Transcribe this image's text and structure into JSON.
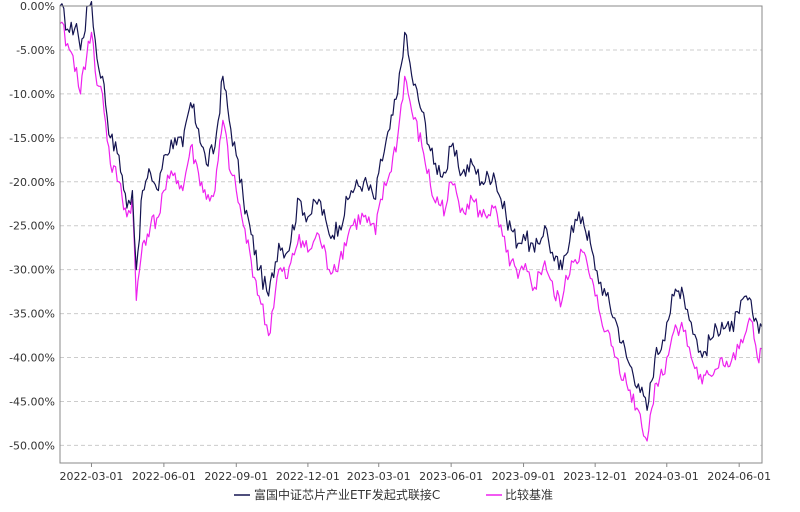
{
  "chart_data": {
    "type": "line",
    "title": "",
    "xlabel": "",
    "ylabel": "",
    "grid": true,
    "legend_position": "bottom-center",
    "x_range": [
      "2022-01-20",
      "2024-06-30"
    ],
    "ylim": [
      -0.52,
      0.0
    ],
    "y_ticks": [
      0,
      -0.05,
      -0.1,
      -0.15,
      -0.2,
      -0.25,
      -0.3,
      -0.35,
      -0.4,
      -0.45,
      -0.5
    ],
    "y_tick_labels": [
      "0.00%",
      "-5.00%",
      "-10.00%",
      "-15.00%",
      "-20.00%",
      "-25.00%",
      "-30.00%",
      "-35.00%",
      "-40.00%",
      "-45.00%",
      "-50.00%"
    ],
    "x_ticks": [
      "2022-03-01",
      "2022-06-01",
      "2022-09-01",
      "2022-12-01",
      "2023-03-01",
      "2023-06-01",
      "2023-09-01",
      "2023-12-01",
      "2024-03-01",
      "2024-06-01"
    ],
    "x_tick_labels": [
      "2022-03-01",
      "2022-06-01",
      "2022-09-01",
      "2022-12-01",
      "2023-03-01",
      "2023-06-01",
      "2023-09-01",
      "2023-12-01",
      "2024-03-01",
      "2024-06-01"
    ],
    "colors": {
      "fund": "#141450",
      "benchmark": "#ee22ee",
      "zero_line": "#3333aa",
      "grid": "#cccccc"
    },
    "series": [
      {
        "name": "富国中证芯片产业ETF发起式联接C",
        "points": [
          [
            "2022-01-20",
            0.0
          ],
          [
            "2022-02-01",
            -0.03
          ],
          [
            "2022-02-10",
            -0.02
          ],
          [
            "2022-02-15",
            -0.05
          ],
          [
            "2022-02-25",
            0.0
          ],
          [
            "2022-03-01",
            0.005
          ],
          [
            "2022-03-08",
            -0.06
          ],
          [
            "2022-03-15",
            -0.08
          ],
          [
            "2022-03-25",
            -0.15
          ],
          [
            "2022-04-05",
            -0.17
          ],
          [
            "2022-04-15",
            -0.23
          ],
          [
            "2022-04-22",
            -0.21
          ],
          [
            "2022-04-27",
            -0.3
          ],
          [
            "2022-05-05",
            -0.21
          ],
          [
            "2022-05-15",
            -0.19
          ],
          [
            "2022-05-25",
            -0.21
          ],
          [
            "2022-06-01",
            -0.17
          ],
          [
            "2022-06-15",
            -0.15
          ],
          [
            "2022-06-25",
            -0.16
          ],
          [
            "2022-07-05",
            -0.11
          ],
          [
            "2022-07-15",
            -0.14
          ],
          [
            "2022-07-25",
            -0.18
          ],
          [
            "2022-08-05",
            -0.16
          ],
          [
            "2022-08-15",
            -0.08
          ],
          [
            "2022-08-25",
            -0.14
          ],
          [
            "2022-09-01",
            -0.17
          ],
          [
            "2022-09-10",
            -0.22
          ],
          [
            "2022-09-20",
            -0.26
          ],
          [
            "2022-09-30",
            -0.3
          ],
          [
            "2022-10-12",
            -0.33
          ],
          [
            "2022-10-25",
            -0.27
          ],
          [
            "2022-11-05",
            -0.28
          ],
          [
            "2022-11-20",
            -0.22
          ],
          [
            "2022-12-01",
            -0.24
          ],
          [
            "2022-12-15",
            -0.22
          ],
          [
            "2022-12-28",
            -0.26
          ],
          [
            "2023-01-10",
            -0.25
          ],
          [
            "2023-01-25",
            -0.21
          ],
          [
            "2023-02-10",
            -0.2
          ],
          [
            "2023-02-25",
            -0.22
          ],
          [
            "2023-03-01",
            -0.19
          ],
          [
            "2023-03-15",
            -0.14
          ],
          [
            "2023-03-25",
            -0.1
          ],
          [
            "2023-04-03",
            -0.03
          ],
          [
            "2023-04-12",
            -0.08
          ],
          [
            "2023-04-25",
            -0.12
          ],
          [
            "2023-05-10",
            -0.18
          ],
          [
            "2023-05-25",
            -0.19
          ],
          [
            "2023-06-01",
            -0.16
          ],
          [
            "2023-06-15",
            -0.19
          ],
          [
            "2023-06-28",
            -0.18
          ],
          [
            "2023-07-10",
            -0.2
          ],
          [
            "2023-07-25",
            -0.19
          ],
          [
            "2023-08-10",
            -0.24
          ],
          [
            "2023-08-25",
            -0.27
          ],
          [
            "2023-09-01",
            -0.26
          ],
          [
            "2023-09-15",
            -0.28
          ],
          [
            "2023-09-28",
            -0.25
          ],
          [
            "2023-10-10",
            -0.29
          ],
          [
            "2023-10-20",
            -0.3
          ],
          [
            "2023-11-01",
            -0.25
          ],
          [
            "2023-11-15",
            -0.24
          ],
          [
            "2023-11-25",
            -0.27
          ],
          [
            "2023-12-01",
            -0.3
          ],
          [
            "2023-12-15",
            -0.33
          ],
          [
            "2023-12-28",
            -0.36
          ],
          [
            "2024-01-10",
            -0.4
          ],
          [
            "2024-01-25",
            -0.43
          ],
          [
            "2024-02-05",
            -0.46
          ],
          [
            "2024-02-15",
            -0.4
          ],
          [
            "2024-02-25",
            -0.38
          ],
          [
            "2024-03-01",
            -0.36
          ],
          [
            "2024-03-10",
            -0.33
          ],
          [
            "2024-03-20",
            -0.32
          ],
          [
            "2024-04-01",
            -0.36
          ],
          [
            "2024-04-15",
            -0.4
          ],
          [
            "2024-04-25",
            -0.38
          ],
          [
            "2024-05-10",
            -0.36
          ],
          [
            "2024-05-20",
            -0.37
          ],
          [
            "2024-06-01",
            -0.35
          ],
          [
            "2024-06-10",
            -0.33
          ],
          [
            "2024-06-18",
            -0.35
          ],
          [
            "2024-06-24",
            -0.36
          ],
          [
            "2024-06-30",
            -0.365
          ]
        ]
      },
      {
        "name": "比较基准",
        "points": [
          [
            "2022-01-20",
            -0.02
          ],
          [
            "2022-02-01",
            -0.05
          ],
          [
            "2022-02-10",
            -0.07
          ],
          [
            "2022-02-15",
            -0.1
          ],
          [
            "2022-02-25",
            -0.04
          ],
          [
            "2022-03-01",
            -0.03
          ],
          [
            "2022-03-08",
            -0.09
          ],
          [
            "2022-03-15",
            -0.1
          ],
          [
            "2022-03-25",
            -0.18
          ],
          [
            "2022-04-05",
            -0.2
          ],
          [
            "2022-04-15",
            -0.24
          ],
          [
            "2022-04-22",
            -0.22
          ],
          [
            "2022-04-27",
            -0.335
          ],
          [
            "2022-05-05",
            -0.27
          ],
          [
            "2022-05-15",
            -0.25
          ],
          [
            "2022-05-25",
            -0.24
          ],
          [
            "2022-06-01",
            -0.21
          ],
          [
            "2022-06-15",
            -0.19
          ],
          [
            "2022-06-25",
            -0.21
          ],
          [
            "2022-07-05",
            -0.16
          ],
          [
            "2022-07-15",
            -0.19
          ],
          [
            "2022-07-25",
            -0.22
          ],
          [
            "2022-08-05",
            -0.21
          ],
          [
            "2022-08-15",
            -0.13
          ],
          [
            "2022-08-25",
            -0.19
          ],
          [
            "2022-09-01",
            -0.21
          ],
          [
            "2022-09-10",
            -0.25
          ],
          [
            "2022-09-20",
            -0.29
          ],
          [
            "2022-09-30",
            -0.33
          ],
          [
            "2022-10-12",
            -0.375
          ],
          [
            "2022-10-25",
            -0.3
          ],
          [
            "2022-11-05",
            -0.31
          ],
          [
            "2022-11-20",
            -0.26
          ],
          [
            "2022-12-01",
            -0.28
          ],
          [
            "2022-12-15",
            -0.26
          ],
          [
            "2022-12-28",
            -0.3
          ],
          [
            "2023-01-10",
            -0.29
          ],
          [
            "2023-01-25",
            -0.25
          ],
          [
            "2023-02-10",
            -0.24
          ],
          [
            "2023-02-25",
            -0.26
          ],
          [
            "2023-03-01",
            -0.23
          ],
          [
            "2023-03-15",
            -0.19
          ],
          [
            "2023-03-25",
            -0.15
          ],
          [
            "2023-04-03",
            -0.08
          ],
          [
            "2023-04-12",
            -0.12
          ],
          [
            "2023-04-25",
            -0.16
          ],
          [
            "2023-05-10",
            -0.22
          ],
          [
            "2023-05-25",
            -0.23
          ],
          [
            "2023-06-01",
            -0.2
          ],
          [
            "2023-06-15",
            -0.23
          ],
          [
            "2023-06-28",
            -0.22
          ],
          [
            "2023-07-10",
            -0.24
          ],
          [
            "2023-07-25",
            -0.23
          ],
          [
            "2023-08-10",
            -0.28
          ],
          [
            "2023-08-25",
            -0.31
          ],
          [
            "2023-09-01",
            -0.3
          ],
          [
            "2023-09-15",
            -0.32
          ],
          [
            "2023-09-28",
            -0.29
          ],
          [
            "2023-10-10",
            -0.33
          ],
          [
            "2023-10-20",
            -0.335
          ],
          [
            "2023-11-01",
            -0.29
          ],
          [
            "2023-11-15",
            -0.28
          ],
          [
            "2023-11-25",
            -0.31
          ],
          [
            "2023-12-01",
            -0.33
          ],
          [
            "2023-12-15",
            -0.37
          ],
          [
            "2023-12-28",
            -0.4
          ],
          [
            "2024-01-10",
            -0.43
          ],
          [
            "2024-01-25",
            -0.46
          ],
          [
            "2024-02-05",
            -0.495
          ],
          [
            "2024-02-15",
            -0.43
          ],
          [
            "2024-02-25",
            -0.42
          ],
          [
            "2024-03-01",
            -0.4
          ],
          [
            "2024-03-10",
            -0.37
          ],
          [
            "2024-03-20",
            -0.36
          ],
          [
            "2024-04-01",
            -0.4
          ],
          [
            "2024-04-15",
            -0.43
          ],
          [
            "2024-04-25",
            -0.42
          ],
          [
            "2024-05-10",
            -0.4
          ],
          [
            "2024-05-20",
            -0.41
          ],
          [
            "2024-06-01",
            -0.39
          ],
          [
            "2024-06-10",
            -0.37
          ],
          [
            "2024-06-18",
            -0.36
          ],
          [
            "2024-06-24",
            -0.4
          ],
          [
            "2024-06-30",
            -0.39
          ]
        ]
      }
    ]
  }
}
